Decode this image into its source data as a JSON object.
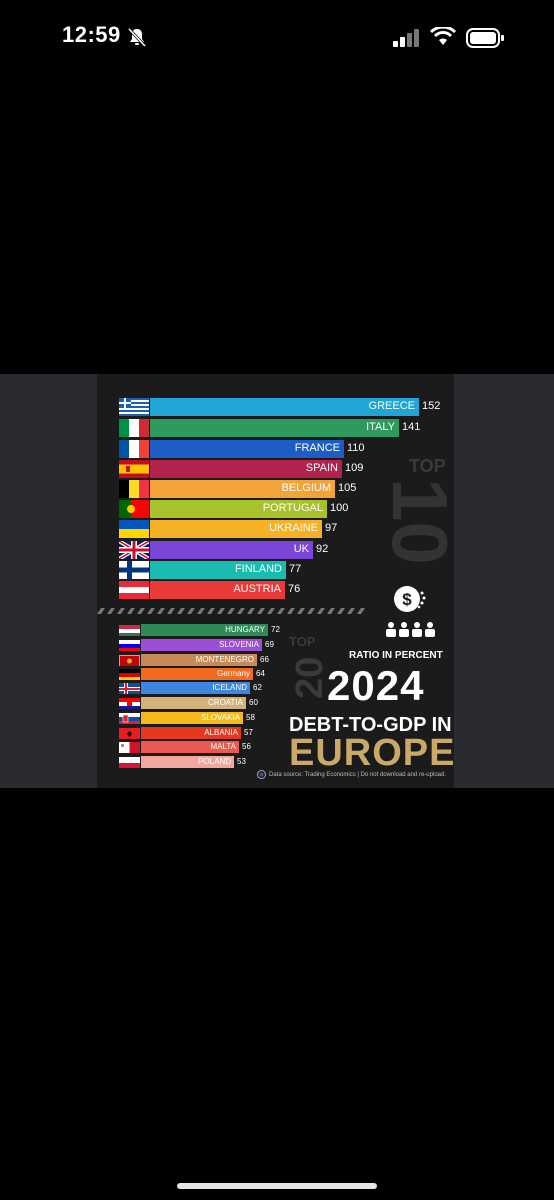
{
  "status_bar": {
    "time": "12:59"
  },
  "infographic": {
    "top10": {
      "word": "TOP",
      "number": "10",
      "bars": [
        {
          "country": "GREECE",
          "value": 152,
          "color": "#1fa6d6"
        },
        {
          "country": "ITALY",
          "value": 141,
          "color": "#2e9a5e"
        },
        {
          "country": "FRANCE",
          "value": 110,
          "color": "#1d5ec6"
        },
        {
          "country": "SPAIN",
          "value": 109,
          "color": "#b3224c"
        },
        {
          "country": "BELGIUM",
          "value": 105,
          "color": "#f2a33a"
        },
        {
          "country": "PORTUGAL",
          "value": 100,
          "color": "#a8c22b"
        },
        {
          "country": "UKRAINE",
          "value": 97,
          "color": "#f6b224"
        },
        {
          "country": "UK",
          "value": 92,
          "color": "#7b45d8"
        },
        {
          "country": "FINLAND",
          "value": 77,
          "color": "#1bbcb0"
        },
        {
          "country": "AUSTRIA",
          "value": 76,
          "color": "#ea3b3b"
        }
      ]
    },
    "top20": {
      "word": "TOP",
      "number": "20",
      "bars": [
        {
          "country": "HUNGARY",
          "value": 72,
          "color": "#2e8a57"
        },
        {
          "country": "SLOVENIA",
          "value": 69,
          "color": "#9a4fd6"
        },
        {
          "country": "MONTENEGRO",
          "value": 66,
          "color": "#c58a57"
        },
        {
          "country": "Germany",
          "value": 64,
          "color": "#f06a1f"
        },
        {
          "country": "ICELAND",
          "value": 62,
          "color": "#3f86e3"
        },
        {
          "country": "CROATIA",
          "value": 60,
          "color": "#d2b27a"
        },
        {
          "country": "SLOVAKIA",
          "value": 58,
          "color": "#f4ba1d"
        },
        {
          "country": "ALBANIA",
          "value": 57,
          "color": "#e8371f"
        },
        {
          "country": "MALTA",
          "value": 56,
          "color": "#e85a4f"
        },
        {
          "country": "POLAND",
          "value": 53,
          "color": "#f4a79f"
        }
      ]
    },
    "ratio_label": "RATIO IN PERCENT",
    "year": "2024",
    "headline": "DEBT-TO-GDP IN",
    "region": "EUROPE",
    "source": "Data source: Trading Economics   |   Do not download and re-upload."
  }
}
